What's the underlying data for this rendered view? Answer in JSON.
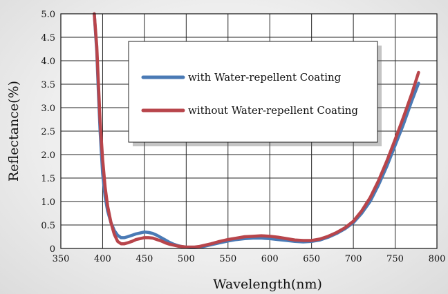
{
  "chart_data": {
    "type": "line",
    "xlabel": "Wavelength(nm)",
    "ylabel": "Reflectance(%)",
    "xlim": [
      350,
      800
    ],
    "ylim": [
      0,
      5.0
    ],
    "x_ticks": [
      "350",
      "400",
      "450",
      "500",
      "550",
      "600",
      "650",
      "700",
      "750",
      "800"
    ],
    "y_ticks": [
      "0",
      "0.5",
      "1.0",
      "1.5",
      "2.0",
      "2.5",
      "3.0",
      "3.5",
      "4.0",
      "4.5",
      "5.0"
    ],
    "grid": true,
    "legend_position": "top-center",
    "series": [
      {
        "name": "with Water-repellent Coating",
        "color": "#4a7ab5",
        "points": [
          [
            390,
            5.0
          ],
          [
            393,
            4.2
          ],
          [
            395,
            3.3
          ],
          [
            397,
            2.5
          ],
          [
            400,
            1.6
          ],
          [
            403,
            1.1
          ],
          [
            406,
            0.8
          ],
          [
            410,
            0.55
          ],
          [
            414,
            0.38
          ],
          [
            418,
            0.28
          ],
          [
            422,
            0.23
          ],
          [
            426,
            0.23
          ],
          [
            430,
            0.25
          ],
          [
            435,
            0.28
          ],
          [
            440,
            0.31
          ],
          [
            445,
            0.33
          ],
          [
            450,
            0.35
          ],
          [
            455,
            0.34
          ],
          [
            460,
            0.32
          ],
          [
            465,
            0.28
          ],
          [
            470,
            0.23
          ],
          [
            475,
            0.18
          ],
          [
            480,
            0.13
          ],
          [
            485,
            0.09
          ],
          [
            490,
            0.06
          ],
          [
            495,
            0.04
          ],
          [
            500,
            0.025
          ],
          [
            505,
            0.02
          ],
          [
            510,
            0.02
          ],
          [
            515,
            0.025
          ],
          [
            520,
            0.04
          ],
          [
            530,
            0.08
          ],
          [
            540,
            0.12
          ],
          [
            550,
            0.16
          ],
          [
            560,
            0.19
          ],
          [
            570,
            0.21
          ],
          [
            580,
            0.22
          ],
          [
            590,
            0.22
          ],
          [
            600,
            0.21
          ],
          [
            610,
            0.19
          ],
          [
            620,
            0.17
          ],
          [
            630,
            0.15
          ],
          [
            640,
            0.14
          ],
          [
            650,
            0.15
          ],
          [
            660,
            0.18
          ],
          [
            670,
            0.24
          ],
          [
            680,
            0.32
          ],
          [
            690,
            0.42
          ],
          [
            700,
            0.55
          ],
          [
            710,
            0.75
          ],
          [
            720,
            1.0
          ],
          [
            730,
            1.35
          ],
          [
            740,
            1.75
          ],
          [
            750,
            2.2
          ],
          [
            760,
            2.65
          ],
          [
            770,
            3.15
          ],
          [
            778,
            3.52
          ]
        ]
      },
      {
        "name": "without Water-repellent Coating",
        "color": "#b8454b",
        "points": [
          [
            390,
            5.0
          ],
          [
            393,
            4.3
          ],
          [
            395,
            3.5
          ],
          [
            397,
            2.7
          ],
          [
            400,
            1.9
          ],
          [
            403,
            1.3
          ],
          [
            406,
            0.9
          ],
          [
            410,
            0.55
          ],
          [
            414,
            0.3
          ],
          [
            418,
            0.15
          ],
          [
            422,
            0.1
          ],
          [
            426,
            0.1
          ],
          [
            430,
            0.12
          ],
          [
            435,
            0.15
          ],
          [
            440,
            0.19
          ],
          [
            445,
            0.21
          ],
          [
            450,
            0.23
          ],
          [
            455,
            0.23
          ],
          [
            460,
            0.22
          ],
          [
            465,
            0.19
          ],
          [
            470,
            0.16
          ],
          [
            475,
            0.12
          ],
          [
            480,
            0.09
          ],
          [
            485,
            0.07
          ],
          [
            490,
            0.05
          ],
          [
            495,
            0.04
          ],
          [
            500,
            0.03
          ],
          [
            505,
            0.03
          ],
          [
            510,
            0.03
          ],
          [
            515,
            0.04
          ],
          [
            520,
            0.06
          ],
          [
            530,
            0.1
          ],
          [
            540,
            0.15
          ],
          [
            550,
            0.19
          ],
          [
            560,
            0.22
          ],
          [
            570,
            0.25
          ],
          [
            580,
            0.26
          ],
          [
            590,
            0.27
          ],
          [
            600,
            0.26
          ],
          [
            610,
            0.24
          ],
          [
            620,
            0.21
          ],
          [
            630,
            0.18
          ],
          [
            640,
            0.17
          ],
          [
            650,
            0.17
          ],
          [
            660,
            0.2
          ],
          [
            670,
            0.26
          ],
          [
            680,
            0.34
          ],
          [
            690,
            0.44
          ],
          [
            700,
            0.58
          ],
          [
            710,
            0.8
          ],
          [
            720,
            1.08
          ],
          [
            730,
            1.44
          ],
          [
            740,
            1.86
          ],
          [
            750,
            2.32
          ],
          [
            760,
            2.8
          ],
          [
            770,
            3.3
          ],
          [
            778,
            3.75
          ]
        ]
      }
    ]
  }
}
